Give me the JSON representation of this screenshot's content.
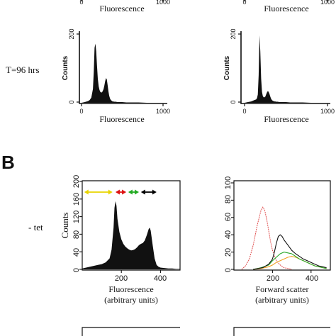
{
  "panel_b_label": "B",
  "rows": {
    "row_t96": "T=96 hrs",
    "row_tet": "- tet"
  },
  "colors": {
    "black": "#111111",
    "arrow_yellow": "#e8d400",
    "arrow_red": "#dd1111",
    "arrow_green": "#22aa22",
    "arrow_black": "#000000",
    "trace_red": "#e05050",
    "trace_green": "#2aa82a",
    "trace_orange": "#f0a020",
    "trace_black": "#111111"
  },
  "chart_data": [
    {
      "id": "top_partial_left",
      "type": "area",
      "xlabel": "Fluorescence",
      "x_tick_labels": [
        "0",
        "1000"
      ]
    },
    {
      "id": "top_partial_right",
      "type": "area",
      "xlabel": "Fluorescence",
      "x_tick_labels": [
        "0",
        "1000"
      ]
    },
    {
      "id": "t96_left",
      "type": "area",
      "xlabel": "Fluorescence",
      "ylabel": "Counts",
      "xlim": [
        0,
        1000
      ],
      "ylim": [
        0,
        200
      ],
      "x_ticks": [
        0,
        1000
      ],
      "y_ticks": [
        0,
        200
      ],
      "x_tick_labels": [
        "0",
        "1000"
      ],
      "y_tick_labels": [
        "0",
        "200"
      ],
      "x": [
        0,
        40,
        80,
        100,
        120,
        140,
        150,
        160,
        170,
        180,
        190,
        200,
        210,
        220,
        230,
        240,
        250,
        260,
        270,
        280,
        290,
        300,
        310,
        320,
        330,
        340,
        350,
        360,
        370,
        380,
        390,
        400,
        420,
        440,
        460,
        480,
        500,
        550,
        600,
        650,
        700,
        800,
        900,
        1000
      ],
      "y": [
        0,
        2,
        5,
        8,
        15,
        40,
        90,
        160,
        172,
        150,
        110,
        70,
        48,
        38,
        32,
        30,
        30,
        34,
        40,
        50,
        62,
        72,
        68,
        52,
        34,
        20,
        12,
        8,
        6,
        4,
        4,
        3,
        3,
        2,
        2,
        2,
        2,
        1,
        1,
        1,
        1,
        0,
        0,
        0
      ]
    },
    {
      "id": "t96_right",
      "type": "area",
      "xlabel": "Fluorescence",
      "ylabel": "Counts",
      "xlim": [
        0,
        1000
      ],
      "ylim": [
        0,
        200
      ],
      "x_ticks": [
        0,
        1000
      ],
      "y_ticks": [
        0,
        200
      ],
      "x_tick_labels": [
        "0",
        "1000"
      ],
      "y_tick_labels": [
        "0",
        "200"
      ],
      "x": [
        0,
        40,
        80,
        100,
        120,
        140,
        150,
        160,
        170,
        180,
        190,
        200,
        210,
        220,
        230,
        240,
        250,
        260,
        270,
        280,
        290,
        300,
        310,
        320,
        330,
        340,
        350,
        360,
        370,
        380,
        400,
        420,
        450,
        500,
        550,
        600,
        700,
        800,
        900,
        1000
      ],
      "y": [
        0,
        2,
        4,
        6,
        8,
        10,
        14,
        24,
        80,
        196,
        150,
        70,
        32,
        20,
        16,
        16,
        18,
        24,
        30,
        34,
        32,
        26,
        18,
        12,
        8,
        6,
        5,
        4,
        4,
        3,
        3,
        2,
        2,
        2,
        1,
        1,
        1,
        0,
        0,
        0
      ]
    },
    {
      "id": "tet_fluorescence",
      "type": "area",
      "xlabel": "Fluorescence (arbitrary units)",
      "xlabel_lines": [
        "Fluorescence",
        "(arbitrary units)"
      ],
      "ylabel": "Counts",
      "xlim": [
        0,
        500
      ],
      "ylim": [
        0,
        200
      ],
      "x_ticks": [
        200,
        400
      ],
      "y_ticks": [
        0,
        40,
        80,
        120,
        160,
        200
      ],
      "x_tick_labels": [
        "200",
        "400"
      ],
      "y_tick_labels": [
        "0",
        "40",
        "80",
        "120",
        "160",
        "200"
      ],
      "x": [
        0,
        20,
        40,
        60,
        80,
        100,
        120,
        140,
        150,
        160,
        165,
        170,
        175,
        180,
        190,
        200,
        210,
        220,
        230,
        240,
        250,
        260,
        270,
        280,
        290,
        300,
        310,
        320,
        330,
        340,
        345,
        350,
        360,
        370,
        380,
        390,
        400,
        420,
        440,
        460,
        480,
        500
      ],
      "y": [
        2,
        4,
        6,
        8,
        10,
        12,
        16,
        25,
        45,
        95,
        140,
        155,
        145,
        115,
        85,
        68,
        58,
        52,
        48,
        45,
        43,
        44,
        46,
        50,
        55,
        58,
        60,
        66,
        78,
        92,
        95,
        88,
        55,
        25,
        10,
        6,
        4,
        3,
        2,
        2,
        1,
        1
      ],
      "arrows": [
        {
          "color": "yellow",
          "from": 10,
          "to": 155
        },
        {
          "color": "red",
          "from": 170,
          "to": 225
        },
        {
          "color": "green",
          "from": 235,
          "to": 290
        },
        {
          "color": "black",
          "from": 300,
          "to": 380
        }
      ]
    },
    {
      "id": "tet_forward_scatter",
      "type": "line",
      "xlabel": "Forward scatter (arbitrary units)",
      "xlabel_lines": [
        "Forward scatter",
        "(arbitrary units)"
      ],
      "xlim": [
        0,
        500
      ],
      "ylim": [
        0,
        100
      ],
      "x_ticks": [
        200,
        400
      ],
      "y_ticks": [
        0,
        20,
        40,
        60,
        80,
        100
      ],
      "x_tick_labels": [
        "200",
        "400"
      ],
      "y_tick_labels": [
        "0",
        "20",
        "40",
        "60",
        "80",
        "100"
      ],
      "series": [
        {
          "color": "red",
          "x": [
            40,
            60,
            80,
            100,
            120,
            140,
            150,
            160,
            170,
            180,
            190,
            200,
            220,
            240,
            260,
            280,
            300
          ],
          "y": [
            0,
            4,
            12,
            28,
            50,
            68,
            72,
            68,
            58,
            45,
            32,
            22,
            10,
            5,
            2,
            1,
            0
          ]
        },
        {
          "color": "orange",
          "x": [
            100,
            140,
            180,
            200,
            220,
            240,
            260,
            280,
            300,
            320,
            340,
            360,
            380,
            400,
            420,
            440,
            460,
            480
          ],
          "y": [
            0,
            1,
            3,
            5,
            8,
            10,
            12,
            14,
            15,
            14,
            12,
            10,
            8,
            6,
            4,
            3,
            2,
            1
          ]
        },
        {
          "color": "green",
          "x": [
            100,
            140,
            180,
            200,
            220,
            240,
            260,
            280,
            300,
            320,
            340,
            360,
            380,
            400,
            420,
            440,
            460,
            480
          ],
          "y": [
            0,
            2,
            5,
            10,
            14,
            18,
            20,
            19,
            18,
            15,
            12,
            10,
            8,
            6,
            4,
            3,
            2,
            1
          ]
        },
        {
          "color": "black",
          "x": [
            100,
            150,
            180,
            200,
            210,
            220,
            230,
            240,
            250,
            260,
            280,
            300,
            320,
            340,
            360,
            380,
            400,
            420,
            440,
            460,
            480
          ],
          "y": [
            0,
            2,
            6,
            12,
            20,
            30,
            38,
            40,
            38,
            34,
            28,
            22,
            18,
            15,
            12,
            10,
            8,
            6,
            4,
            3,
            2
          ]
        }
      ]
    }
  ]
}
